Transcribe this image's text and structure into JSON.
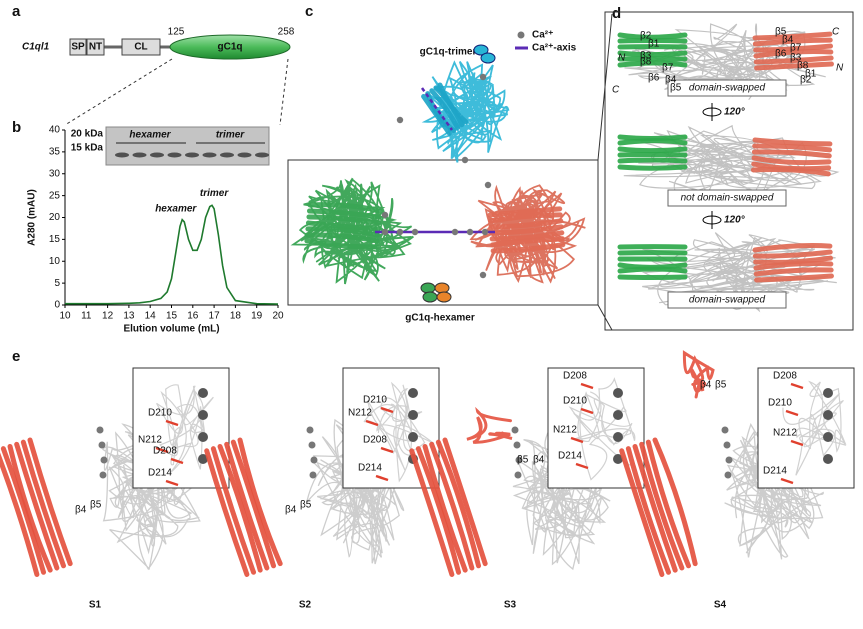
{
  "panel_labels": [
    "a",
    "b",
    "c",
    "d",
    "e"
  ],
  "panel_a": {
    "gene": "C1ql1",
    "domains": [
      "SP",
      "NT",
      "CL",
      "gC1q"
    ],
    "start": 125,
    "end": 258
  },
  "chart_data": {
    "type": "line",
    "xlabel": "Elution volume (mL)",
    "ylabel": "A280 (mAU)",
    "x": [
      10,
      11,
      12,
      13,
      13.5,
      14,
      14.5,
      14.8,
      15,
      15.2,
      15.4,
      15.5,
      15.6,
      15.8,
      16,
      16.2,
      16.4,
      16.6,
      16.8,
      16.9,
      17,
      17.2,
      17.4,
      17.6,
      18,
      19,
      20
    ],
    "values": [
      0.3,
      0.3,
      0.3,
      0.4,
      0.5,
      0.8,
      1.5,
      3,
      6,
      12,
      18,
      19.5,
      19,
      15,
      12.5,
      12.5,
      15,
      20,
      22.5,
      22.8,
      22,
      16,
      9,
      4,
      1,
      0.3,
      0.2
    ],
    "color": "#1f7a2e",
    "xlim": [
      10,
      20
    ],
    "ylim": [
      0,
      40
    ],
    "xticks": [
      10,
      11,
      12,
      13,
      14,
      15,
      16,
      17,
      18,
      19,
      20
    ],
    "yticks": [
      0,
      5,
      10,
      15,
      20,
      25,
      30,
      35,
      40
    ],
    "annotations": [
      "hexamer",
      "trimer"
    ],
    "gel": {
      "markers": [
        "20 kDa",
        "15 kDa"
      ],
      "lanes": [
        "hexamer",
        "trimer"
      ]
    }
  },
  "panel_c": {
    "trimer": "gC1q-trimer",
    "hexamer": "gC1q-hexamer",
    "legend": [
      "Ca²⁺",
      "Ca²⁺-axis"
    ]
  },
  "panel_d": {
    "rows": [
      "domain-swapped",
      "not domain-swapped",
      "domain-swapped"
    ],
    "rotations": [
      "120°",
      "120°"
    ],
    "left_strands": [
      "β2",
      "β1",
      "β3",
      "β7",
      "β8",
      "β6",
      "β4",
      "β5"
    ],
    "right_strands": [
      "β5",
      "β4",
      "β7",
      "β6",
      "β3",
      "β8",
      "β1",
      "β2"
    ],
    "termini": [
      "N",
      "C",
      "C",
      "N"
    ]
  },
  "panel_e": {
    "structures": [
      {
        "name": "S1",
        "residues": [
          "D210",
          "N212",
          "D208",
          "D214"
        ],
        "strands": [
          "β4",
          "β5"
        ]
      },
      {
        "name": "S2",
        "residues": [
          "D210",
          "N212",
          "D208",
          "D214"
        ],
        "strands": [
          "β4",
          "β5"
        ]
      },
      {
        "name": "S3",
        "residues": [
          "D208",
          "D210",
          "N212",
          "D214"
        ],
        "strands": [
          "β5",
          "β4"
        ]
      },
      {
        "name": "S4",
        "residues": [
          "D208",
          "D210",
          "N212",
          "D214"
        ],
        "strands": [
          "β4",
          "β5"
        ]
      }
    ]
  }
}
